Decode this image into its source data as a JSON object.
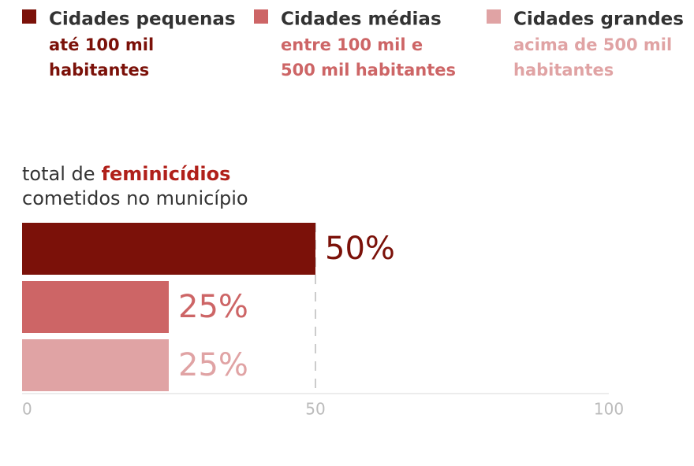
{
  "chart_data": {
    "type": "bar",
    "orientation": "horizontal",
    "title": {
      "before": "total de",
      "highlight": "feminicídios",
      "after": "cometidos no município"
    },
    "title_highlight_color": "#b0201a",
    "categories": [
      null
    ],
    "series": [
      {
        "name": "Cidades pequenas",
        "description": [
          "até 100 mil",
          "habitantes"
        ],
        "color": "#7b1109",
        "values": [
          50
        ],
        "value_labels": [
          "50%"
        ]
      },
      {
        "name": "Cidades médias",
        "description": [
          "entre 100 mil e",
          "500 mil habitantes"
        ],
        "color": "#cd6566",
        "values": [
          25
        ],
        "value_labels": [
          "25%"
        ]
      },
      {
        "name": "Cidades grandes",
        "description": [
          "acima de 500 mil",
          "habitantes"
        ],
        "color": "#e0a3a4",
        "values": [
          25
        ],
        "value_labels": [
          "25%"
        ]
      }
    ],
    "xlim": [
      0,
      100
    ],
    "xticks": [
      0,
      50,
      100
    ],
    "reference_lines": [
      50
    ]
  }
}
